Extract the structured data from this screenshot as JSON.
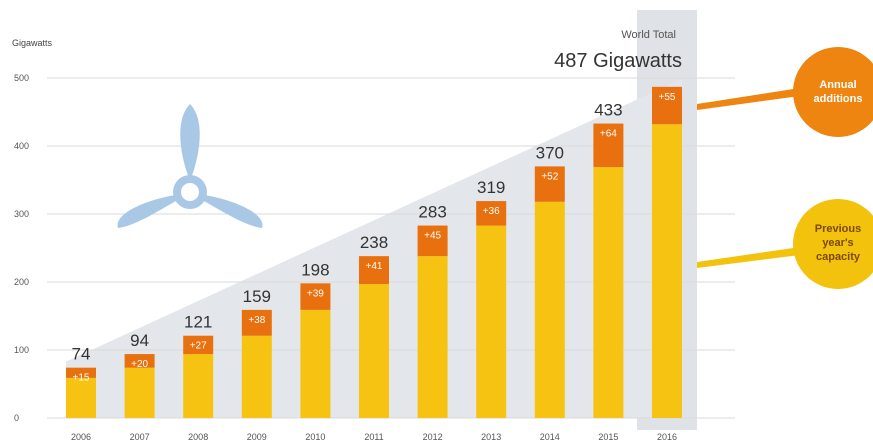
{
  "chart_data": {
    "type": "bar",
    "stacked": true,
    "ylabel": "Gigawatts",
    "ylim": [
      0,
      550
    ],
    "yticks": [
      0,
      100,
      200,
      300,
      400,
      500
    ],
    "grid": true,
    "categories": [
      "2006",
      "2007",
      "2008",
      "2009",
      "2010",
      "2011",
      "2012",
      "2013",
      "2014",
      "2015",
      "2016"
    ],
    "series": [
      {
        "name": "Previous year's capacity",
        "values": [
          59,
          74,
          94,
          121,
          159,
          197,
          238,
          283,
          318,
          369,
          432
        ]
      },
      {
        "name": "Annual additions",
        "values": [
          15,
          20,
          27,
          38,
          39,
          41,
          45,
          36,
          52,
          64,
          55
        ]
      }
    ],
    "totals": [
      "74",
      "94",
      "121",
      "159",
      "198",
      "238",
      "283",
      "319",
      "370",
      "433",
      ""
    ],
    "addition_labels": [
      "+15",
      "+20",
      "+27",
      "+38",
      "+39",
      "+41",
      "+45",
      "+36",
      "+52",
      "+64",
      "+55"
    ],
    "highlight_category": "2016",
    "world_total_title": "World Total",
    "world_total_value": "487 Gigawatts",
    "callouts": {
      "annual": [
        "Annual",
        "additions"
      ],
      "previous": [
        "Previous",
        "year's",
        "capacity"
      ]
    },
    "colors": {
      "previous": "#f7c313",
      "annual": "#e8700f",
      "bubble_annual": "#ee8510",
      "bubble_previous": "#f3c20c",
      "turbine": "#a9c8e6",
      "wedge": "#e3e6ea",
      "highlight": "#dfe2e6",
      "grid": "#d9d9d9"
    }
  }
}
